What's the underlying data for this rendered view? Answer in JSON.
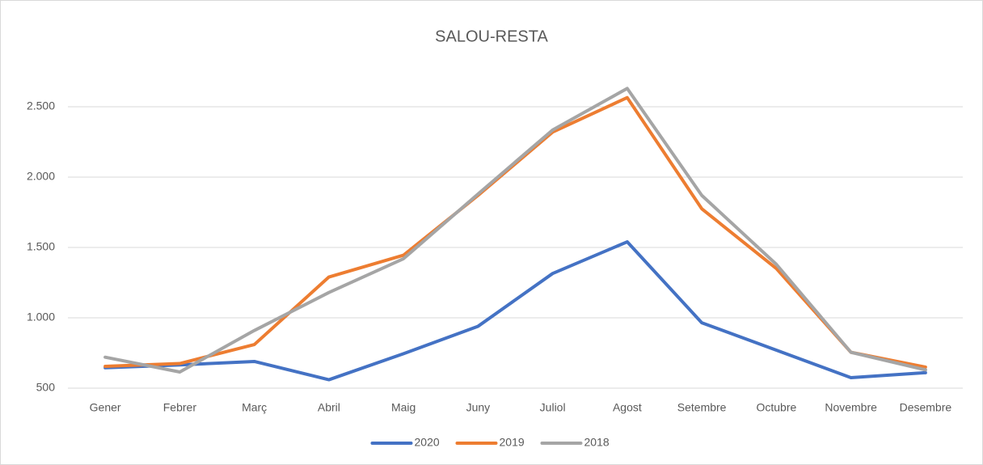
{
  "chart_data": {
    "type": "line",
    "title": "SALOU-RESTA",
    "categories": [
      "Gener",
      "Febrer",
      "Març",
      "Abril",
      "Maig",
      "Juny",
      "Juliol",
      "Agost",
      "Setembre",
      "Octubre",
      "Novembre",
      "Desembre"
    ],
    "series": [
      {
        "name": "2020",
        "color": "#4472c4",
        "values": [
          645,
          665,
          690,
          560,
          745,
          940,
          1315,
          1540,
          965,
          770,
          575,
          610
        ]
      },
      {
        "name": "2019",
        "color": "#ed7d31",
        "values": [
          655,
          675,
          810,
          1290,
          1445,
          1870,
          2320,
          2565,
          1775,
          1350,
          755,
          650
        ]
      },
      {
        "name": "2018",
        "color": "#a5a5a5",
        "values": [
          720,
          615,
          910,
          1180,
          1420,
          1880,
          2335,
          2630,
          1870,
          1380,
          755,
          630
        ]
      }
    ],
    "ylim": [
      500,
      2750
    ],
    "yticks": [
      500,
      {
        "value": 1000,
        "label": "1.000"
      },
      {
        "value": 1500,
        "label": "1.500"
      },
      {
        "value": 2000,
        "label": "2.000"
      },
      {
        "value": 2500,
        "label": "2.500"
      }
    ],
    "grid": true,
    "legend": "bottom"
  }
}
